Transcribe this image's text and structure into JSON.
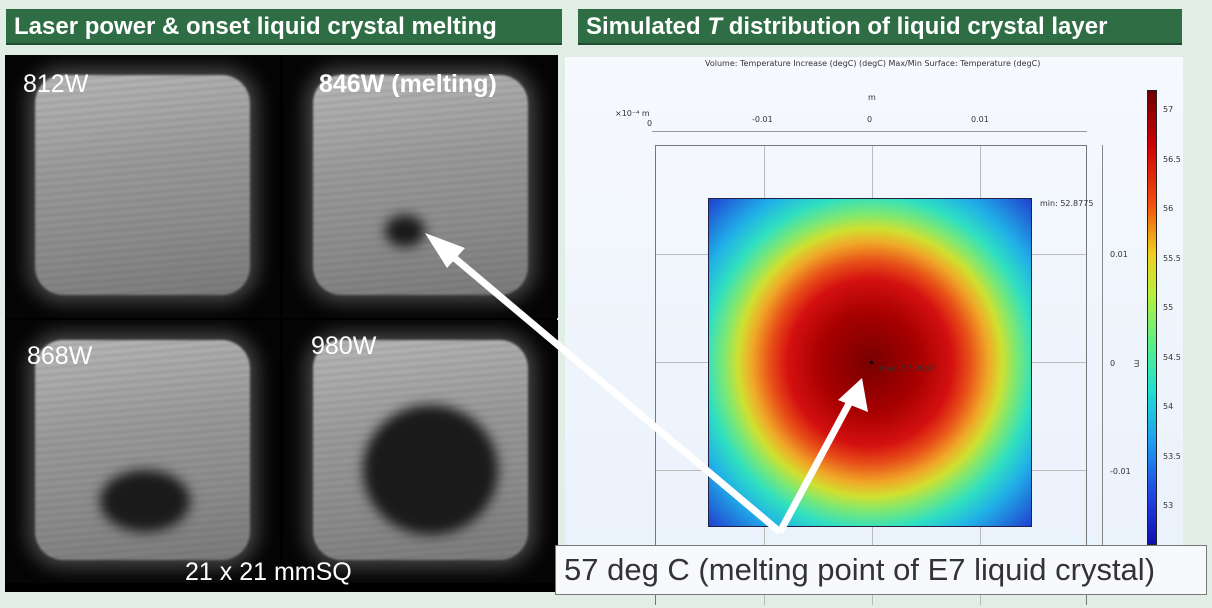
{
  "headers": {
    "left": "Laser power & onset liquid crystal melting",
    "right_pre": "Simulated ",
    "right_italic": "T",
    "right_post": " distribution of liquid crystal layer"
  },
  "images": [
    {
      "label": "812W"
    },
    {
      "label": "846W (melting)"
    },
    {
      "label": "868W"
    },
    {
      "label": "980W"
    }
  ],
  "size_label": "21 x 21 mmSQ",
  "plot": {
    "title": "Volume: Temperature Increase (degC) (degC)  Max/Min Surface: Temperature (degC)",
    "x_unit": "m",
    "x_scale": "×10⁻⁴ m",
    "x_scale_zero": "0",
    "x_ticks": [
      "-0.01",
      "0",
      "0.01"
    ],
    "y_ticks": [
      "0.01",
      "0",
      "-0.01"
    ],
    "y_unit": "m",
    "min_label": "min: 52.8775",
    "max_label": "max: 57.0967",
    "colorbar_ticks": [
      "57",
      "56.5",
      "56",
      "55.5",
      "55",
      "54.5",
      "54",
      "53.5",
      "53"
    ],
    "colormap": "jet"
  },
  "callout": "57 deg C (melting point of E7 liquid crystal)",
  "colors": {
    "header_bg": "#2f6e45",
    "page_bg": "#e0eee6"
  }
}
